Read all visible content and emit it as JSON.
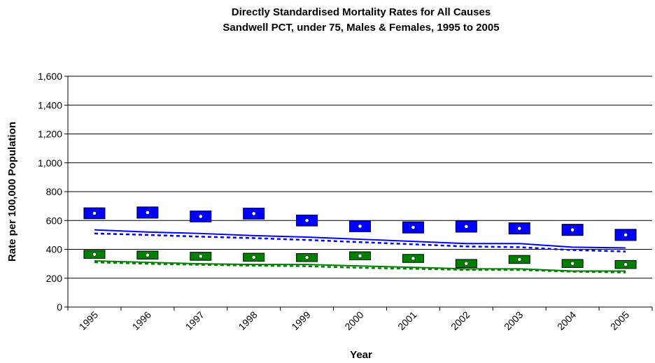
{
  "chart_data": {
    "type": "line",
    "title": [
      "Directly Standardised Mortality Rates for All Causes",
      "Sandwell PCT, under 75, Males & Females, 1995 to 2005"
    ],
    "x_label": "Year",
    "y_label": "Rate per 100,000 Population",
    "categories": [
      "1995",
      "1996",
      "1997",
      "1998",
      "1999",
      "2000",
      "2001",
      "2002",
      "2003",
      "2004",
      "2005"
    ],
    "ylim": [
      0,
      1600
    ],
    "yticks": [
      0,
      200,
      400,
      600,
      800,
      {
        "value": 1000,
        "label": "1,000"
      },
      {
        "value": 1200,
        "label": "1,200"
      },
      {
        "value": 1400,
        "label": "1,400"
      },
      {
        "value": 1600,
        "label": "1,600"
      }
    ],
    "grid": true,
    "series": [
      {
        "style": "box",
        "color": "#0000ff",
        "values": [
          650,
          655,
          628,
          648,
          600,
          560,
          552,
          558,
          545,
          535,
          500
        ],
        "lower": [
          612,
          616,
          590,
          610,
          562,
          522,
          513,
          519,
          506,
          496,
          461
        ],
        "upper": [
          688,
          694,
          666,
          686,
          638,
          598,
          591,
          597,
          584,
          574,
          539
        ]
      },
      {
        "style": "box",
        "color": "#008000",
        "values": [
          365,
          360,
          352,
          345,
          343,
          355,
          337,
          302,
          330,
          302,
          295
        ],
        "lower": [
          337,
          332,
          324,
          317,
          315,
          327,
          309,
          274,
          302,
          274,
          267
        ],
        "upper": [
          393,
          388,
          380,
          373,
          371,
          383,
          365,
          330,
          358,
          330,
          323
        ]
      },
      {
        "style": "solid",
        "color": "#0000ff",
        "values": [
          535,
          520,
          510,
          495,
          485,
          470,
          455,
          440,
          440,
          415,
          410
        ]
      },
      {
        "style": "dashed",
        "color": "#0000ff",
        "values": [
          510,
          500,
          488,
          478,
          465,
          450,
          435,
          420,
          415,
          395,
          385
        ]
      },
      {
        "style": "solid",
        "color": "#008000",
        "values": [
          320,
          310,
          300,
          295,
          295,
          285,
          275,
          265,
          265,
          250,
          250
        ]
      },
      {
        "style": "dashed",
        "color": "#008000",
        "values": [
          310,
          300,
          293,
          287,
          283,
          272,
          265,
          258,
          257,
          245,
          240
        ]
      }
    ]
  }
}
